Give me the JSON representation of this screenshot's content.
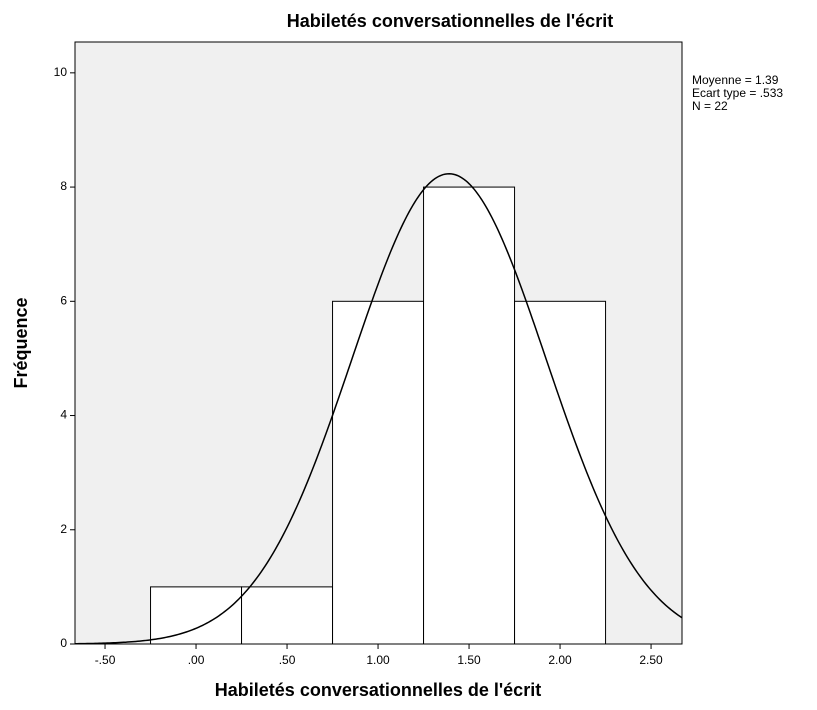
{
  "chart_data": {
    "type": "histogram",
    "title": "Habiletés conversationnelles de l'écrit",
    "x_label": "Habiletés conversationnelles de l'écrit",
    "y_label": "Fréquence",
    "bins": [
      -0.25,
      0.25,
      0.75,
      1.25,
      1.75,
      2.25
    ],
    "counts": [
      1,
      1,
      6,
      8,
      6
    ],
    "color": "#ffffff",
    "plot_background": "#f0f0f0",
    "normal_curve": {
      "mean": 1.39,
      "sd": 0.533,
      "n": 22
    },
    "annotations": [
      "Moyenne = 1.39",
      "Ecart type = .533",
      "N = 22"
    ],
    "xlim": [
      -0.665,
      2.67
    ],
    "xticks": [
      {
        "value": -0.5,
        "label": "-.50"
      },
      {
        "value": 0,
        "label": ".00"
      },
      {
        "value": 0.5,
        "label": ".50"
      },
      {
        "value": 1,
        "label": "1.00"
      },
      {
        "value": 1.5,
        "label": "1.50"
      },
      {
        "value": 2,
        "label": "2.00"
      },
      {
        "value": 2.5,
        "label": "2.50"
      }
    ],
    "ylim": [
      0,
      10.54
    ],
    "yticks": [
      0,
      2,
      4,
      6,
      8,
      10
    ]
  }
}
